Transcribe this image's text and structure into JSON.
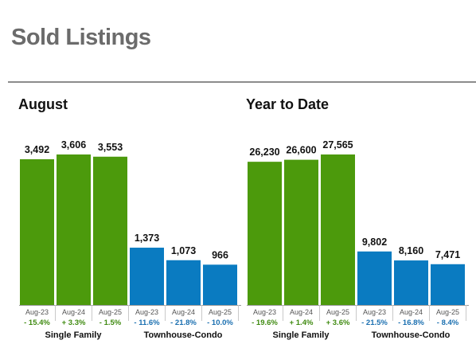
{
  "title": "Sold Listings",
  "colors": {
    "single_family": "#4c9a0c",
    "townhouse_condo": "#0a7bc1",
    "pct_single_family": "#3f8a10",
    "pct_townhouse_condo": "#1a6fb0"
  },
  "chart_data": [
    {
      "type": "bar",
      "title": "August",
      "groups": [
        {
          "name": "Single Family",
          "categories": [
            "Aug-23",
            "Aug-24",
            "Aug-25"
          ],
          "values": [
            3492,
            3606,
            3553
          ],
          "labels": [
            "3,492",
            "3,606",
            "3,553"
          ],
          "changes": [
            "- 15.4%",
            "+ 3.3%",
            "- 1.5%"
          ]
        },
        {
          "name": "Townhouse-Condo",
          "categories": [
            "Aug-23",
            "Aug-24",
            "Aug-25"
          ],
          "values": [
            1373,
            1073,
            966
          ],
          "labels": [
            "1,373",
            "1,073",
            "966"
          ],
          "changes": [
            "- 11.6%",
            "- 21.8%",
            "- 10.0%"
          ]
        }
      ]
    },
    {
      "type": "bar",
      "title": "Year to Date",
      "groups": [
        {
          "name": "Single Family",
          "categories": [
            "Aug-23",
            "Aug-24",
            "Aug-25"
          ],
          "values": [
            26230,
            26600,
            27565
          ],
          "labels": [
            "26,230",
            "26,600",
            "27,565"
          ],
          "changes": [
            "- 19.6%",
            "+ 1.4%",
            "+ 3.6%"
          ]
        },
        {
          "name": "Townhouse-Condo",
          "categories": [
            "Aug-23",
            "Aug-24",
            "Aug-25"
          ],
          "values": [
            9802,
            8160,
            7471
          ],
          "labels": [
            "9,802",
            "8,160",
            "7,471"
          ],
          "changes": [
            "- 21.5%",
            "- 16.8%",
            "- 8.4%"
          ]
        }
      ]
    }
  ]
}
